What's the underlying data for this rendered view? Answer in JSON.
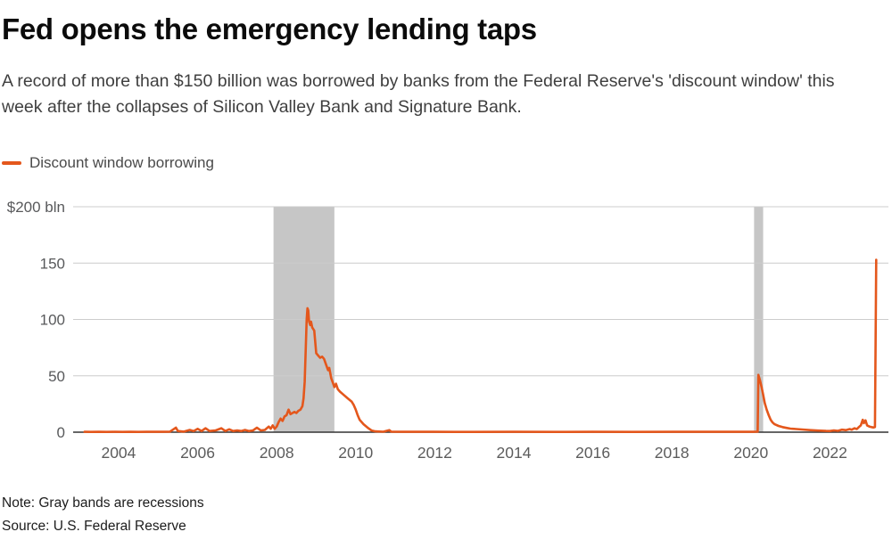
{
  "header": {
    "title": "Fed opens the emergency lending taps",
    "subtitle": "A record of more than $150 billion was borrowed by banks from the Federal Reserve's 'discount window' this week after the collapses of Silicon Valley Bank and Signature Bank."
  },
  "legend": {
    "label": "Discount window borrowing",
    "swatch_color": "#E4571C"
  },
  "footer": {
    "note": "Note: Gray bands are recessions",
    "source": "Source: U.S. Federal Reserve"
  },
  "colors": {
    "accent_orange": "#E4571C",
    "recession_band": "#C6C6C6",
    "gridline": "#CCCCCC",
    "axis_line": "#333333",
    "title_text": "#0B0B0B",
    "subtitle_text": "#3F3F3F",
    "tick_text": "#5C5C5C"
  },
  "chart_data": {
    "type": "line",
    "unit": "$ billion",
    "xlim": [
      2002.85,
      2023.48
    ],
    "ylim": [
      0,
      200
    ],
    "y_ticks": [
      {
        "value": 200,
        "label": "$200 bln"
      },
      {
        "value": 150,
        "label": "150"
      },
      {
        "value": 100,
        "label": "100"
      },
      {
        "value": 50,
        "label": "50"
      },
      {
        "value": 0,
        "label": "0"
      }
    ],
    "x_ticks": [
      {
        "value": 2004,
        "label": "2004"
      },
      {
        "value": 2006,
        "label": "2006"
      },
      {
        "value": 2008,
        "label": "2008"
      },
      {
        "value": 2010,
        "label": "2010"
      },
      {
        "value": 2012,
        "label": "2012"
      },
      {
        "value": 2014,
        "label": "2014"
      },
      {
        "value": 2016,
        "label": "2016"
      },
      {
        "value": 2018,
        "label": "2018"
      },
      {
        "value": 2020,
        "label": "2020"
      },
      {
        "value": 2022,
        "label": "2022"
      }
    ],
    "recession_bands": [
      {
        "start": 2007.92,
        "end": 2009.46
      },
      {
        "start": 2020.08,
        "end": 2020.31
      }
    ],
    "series": [
      {
        "name": "Discount window borrowing",
        "color": "#E4571C",
        "points": [
          [
            2003.14,
            0.3
          ],
          [
            2003.3,
            0.2
          ],
          [
            2003.5,
            0.3
          ],
          [
            2003.7,
            0.2
          ],
          [
            2003.9,
            0.3
          ],
          [
            2004.1,
            0.2
          ],
          [
            2004.3,
            0.3
          ],
          [
            2004.5,
            0.2
          ],
          [
            2004.7,
            0.3
          ],
          [
            2004.9,
            0.3
          ],
          [
            2005.1,
            0.3
          ],
          [
            2005.3,
            0.5
          ],
          [
            2005.45,
            4
          ],
          [
            2005.5,
            1
          ],
          [
            2005.65,
            0.5
          ],
          [
            2005.8,
            2
          ],
          [
            2005.9,
            1
          ],
          [
            2006.0,
            3
          ],
          [
            2006.1,
            1
          ],
          [
            2006.2,
            3.5
          ],
          [
            2006.3,
            1
          ],
          [
            2006.45,
            1.5
          ],
          [
            2006.6,
            3.5
          ],
          [
            2006.7,
            1
          ],
          [
            2006.8,
            2.5
          ],
          [
            2006.9,
            1
          ],
          [
            2007.0,
            1.5
          ],
          [
            2007.1,
            1
          ],
          [
            2007.2,
            2
          ],
          [
            2007.3,
            1
          ],
          [
            2007.4,
            1.5
          ],
          [
            2007.5,
            4
          ],
          [
            2007.6,
            1.5
          ],
          [
            2007.7,
            2
          ],
          [
            2007.8,
            5
          ],
          [
            2007.85,
            3
          ],
          [
            2007.9,
            6
          ],
          [
            2007.95,
            3
          ],
          [
            2008.0,
            5
          ],
          [
            2008.05,
            9
          ],
          [
            2008.1,
            12
          ],
          [
            2008.15,
            10
          ],
          [
            2008.2,
            14
          ],
          [
            2008.25,
            15
          ],
          [
            2008.3,
            20
          ],
          [
            2008.35,
            16
          ],
          [
            2008.4,
            17
          ],
          [
            2008.45,
            18
          ],
          [
            2008.5,
            17
          ],
          [
            2008.55,
            19
          ],
          [
            2008.6,
            20
          ],
          [
            2008.65,
            23
          ],
          [
            2008.68,
            30
          ],
          [
            2008.71,
            45
          ],
          [
            2008.74,
            80
          ],
          [
            2008.76,
            100
          ],
          [
            2008.78,
            110
          ],
          [
            2008.8,
            108
          ],
          [
            2008.82,
            98
          ],
          [
            2008.85,
            95
          ],
          [
            2008.87,
            98
          ],
          [
            2008.9,
            93
          ],
          [
            2008.95,
            90
          ],
          [
            2009.0,
            70
          ],
          [
            2009.05,
            68
          ],
          [
            2009.1,
            66
          ],
          [
            2009.15,
            67
          ],
          [
            2009.2,
            65
          ],
          [
            2009.25,
            60
          ],
          [
            2009.3,
            55
          ],
          [
            2009.33,
            57
          ],
          [
            2009.38,
            48
          ],
          [
            2009.42,
            44
          ],
          [
            2009.46,
            40
          ],
          [
            2009.5,
            43
          ],
          [
            2009.55,
            38
          ],
          [
            2009.6,
            36
          ],
          [
            2009.7,
            33
          ],
          [
            2009.8,
            30
          ],
          [
            2009.9,
            27
          ],
          [
            2009.95,
            24
          ],
          [
            2010.0,
            20
          ],
          [
            2010.05,
            15
          ],
          [
            2010.1,
            11
          ],
          [
            2010.2,
            7
          ],
          [
            2010.3,
            4
          ],
          [
            2010.4,
            1.5
          ],
          [
            2010.5,
            0.7
          ],
          [
            2010.7,
            0.4
          ],
          [
            2010.85,
            1.8
          ],
          [
            2010.9,
            0.4
          ],
          [
            2011.2,
            0.3
          ],
          [
            2012,
            0.3
          ],
          [
            2013,
            0.25
          ],
          [
            2014,
            0.3
          ],
          [
            2015,
            0.25
          ],
          [
            2016,
            0.3
          ],
          [
            2017,
            0.25
          ],
          [
            2018,
            0.3
          ],
          [
            2019,
            0.3
          ],
          [
            2019.8,
            0.3
          ],
          [
            2020.05,
            0.3
          ],
          [
            2020.17,
            0.4
          ],
          [
            2020.19,
            50.8
          ],
          [
            2020.23,
            46
          ],
          [
            2020.27,
            40
          ],
          [
            2020.31,
            33
          ],
          [
            2020.35,
            26
          ],
          [
            2020.4,
            20
          ],
          [
            2020.45,
            15
          ],
          [
            2020.5,
            11
          ],
          [
            2020.55,
            8.5
          ],
          [
            2020.6,
            7
          ],
          [
            2020.7,
            5.5
          ],
          [
            2020.8,
            4.5
          ],
          [
            2020.9,
            3.8
          ],
          [
            2021.0,
            3.2
          ],
          [
            2021.15,
            2.8
          ],
          [
            2021.3,
            2.4
          ],
          [
            2021.5,
            1.8
          ],
          [
            2021.7,
            1.4
          ],
          [
            2021.9,
            1.1
          ],
          [
            2022.0,
            1
          ],
          [
            2022.1,
            1.6
          ],
          [
            2022.2,
            1.2
          ],
          [
            2022.3,
            2.2
          ],
          [
            2022.4,
            1.8
          ],
          [
            2022.5,
            2.8
          ],
          [
            2022.55,
            2.2
          ],
          [
            2022.62,
            3.5
          ],
          [
            2022.68,
            2.8
          ],
          [
            2022.73,
            4.5
          ],
          [
            2022.78,
            6
          ],
          [
            2022.83,
            11
          ],
          [
            2022.86,
            8
          ],
          [
            2022.9,
            10.5
          ],
          [
            2022.94,
            6
          ],
          [
            2023.0,
            5
          ],
          [
            2023.05,
            4.5
          ],
          [
            2023.1,
            4.2
          ],
          [
            2023.14,
            4.6
          ],
          [
            2023.17,
            152.9
          ]
        ]
      }
    ]
  }
}
